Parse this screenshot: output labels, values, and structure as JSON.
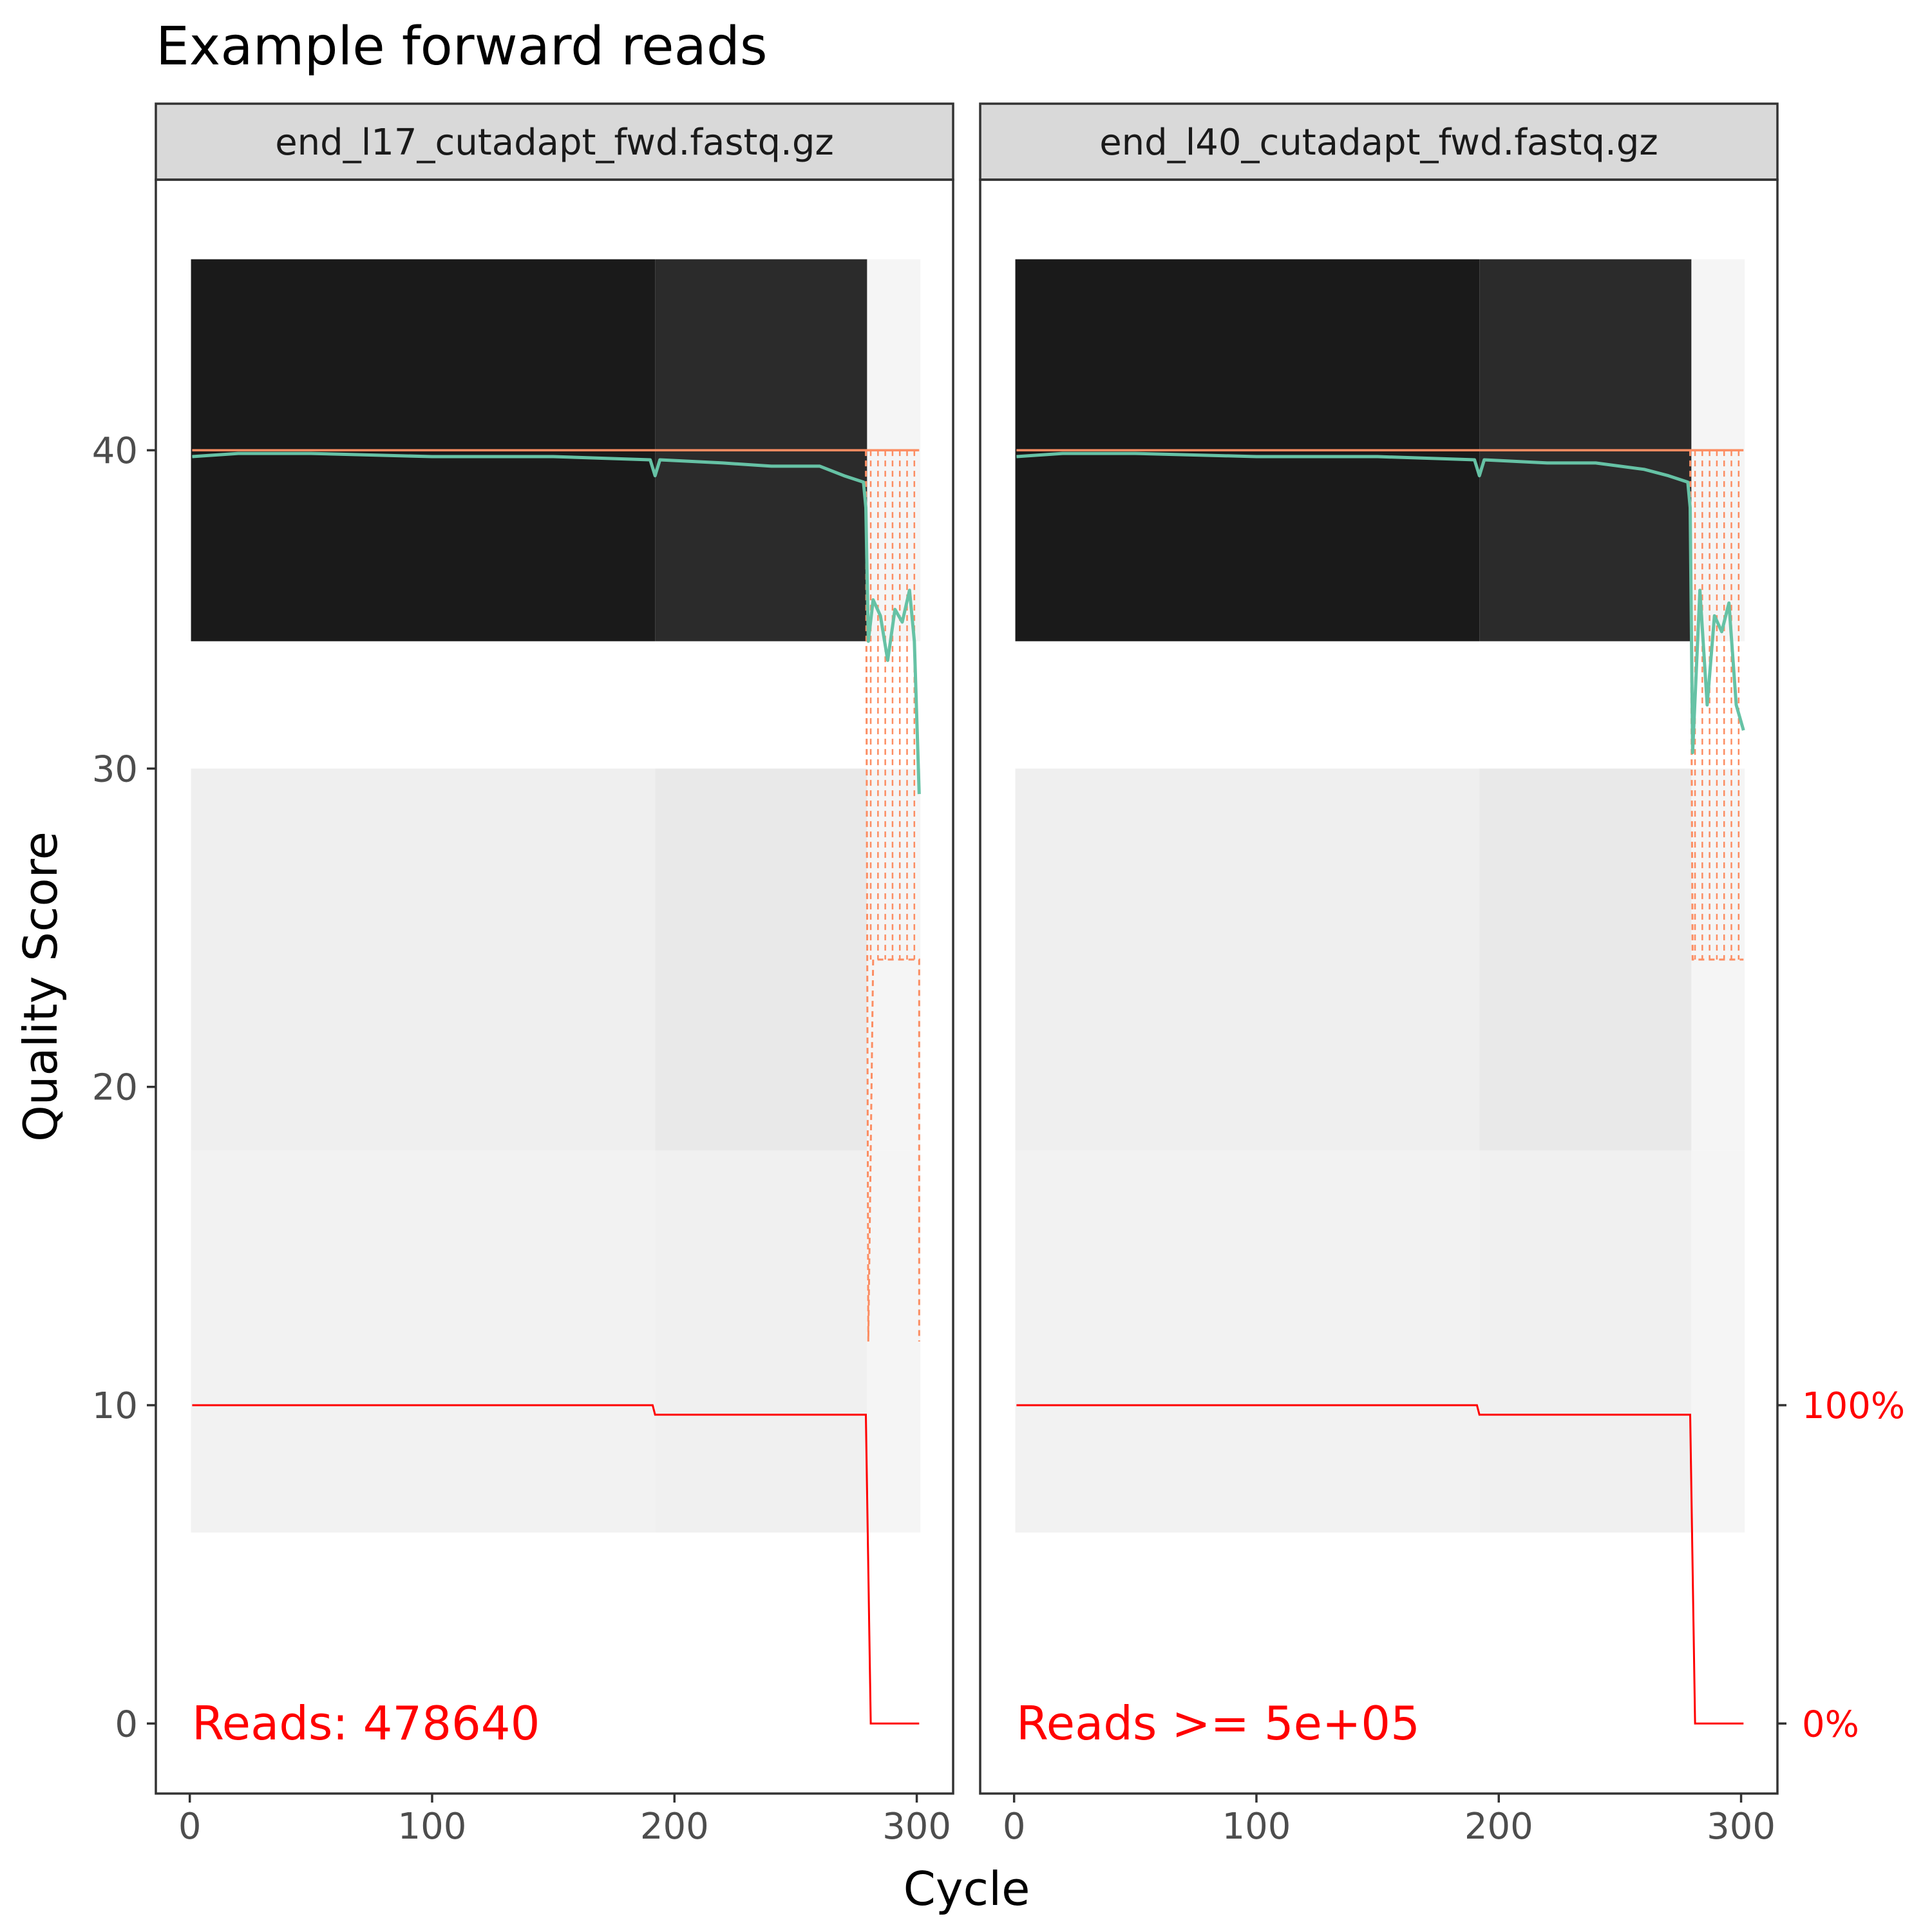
{
  "chart_data": {
    "type": "heatmap",
    "title": "Example forward reads",
    "xlabel": "Cycle",
    "ylabel": "Quality Score",
    "xlim": [
      -14,
      315
    ],
    "ylim": [
      -2.2,
      48.5
    ],
    "x_ticks": [
      "0",
      "100",
      "200",
      "300"
    ],
    "x_tick_values": [
      0,
      100,
      200,
      300
    ],
    "y_ticks": [
      "0",
      "10",
      "20",
      "30",
      "40"
    ],
    "y_tick_values": [
      0,
      10,
      20,
      30,
      40
    ],
    "right_axis_ticks": [
      "0%",
      "100%"
    ],
    "right_axis_values": [
      0,
      10
    ],
    "background_note": "Cycles 1-301; score bands with counts",
    "panels": [
      {
        "strip_label": "end_l17_cutadapt_fwd.fastq.gz",
        "reads_label": "Reads:  478640",
        "max_cycle": 301,
        "full_cycles": 279,
        "mean_quality": [
          [
            1,
            39.8
          ],
          [
            20,
            39.9
          ],
          [
            50,
            39.9
          ],
          [
            100,
            39.8
          ],
          [
            150,
            39.8
          ],
          [
            190,
            39.7
          ],
          [
            192,
            39.2
          ],
          [
            194,
            39.7
          ],
          [
            220,
            39.6
          ],
          [
            240,
            39.5
          ],
          [
            260,
            39.5
          ],
          [
            270,
            39.2
          ],
          [
            278,
            39.0
          ],
          [
            279,
            38.2
          ],
          [
            280,
            34.0
          ],
          [
            282,
            35.3
          ],
          [
            285,
            34.8
          ],
          [
            288,
            33.4
          ],
          [
            291,
            35.0
          ],
          [
            294,
            34.6
          ],
          [
            297,
            35.6
          ],
          [
            299,
            34.0
          ],
          [
            301,
            29.2
          ]
        ],
        "q25_dashed": [
          [
            279,
            40
          ],
          [
            280,
            12
          ],
          [
            282,
            24
          ],
          [
            301,
            24
          ],
          [
            301,
            12
          ]
        ],
        "q50_solid": [
          [
            1,
            40
          ],
          [
            301,
            40
          ]
        ],
        "cumulative_reads_fraction": [
          [
            1,
            1.0
          ],
          [
            191,
            1.0
          ],
          [
            192,
            0.97
          ],
          [
            279,
            0.97
          ],
          [
            281,
            0.0
          ],
          [
            301,
            0.0
          ]
        ]
      },
      {
        "strip_label": "end_l40_cutadapt_fwd.fastq.gz",
        "reads_label": "Reads >=  5e+05",
        "max_cycle": 301,
        "full_cycles": 279,
        "mean_quality": [
          [
            1,
            39.8
          ],
          [
            20,
            39.9
          ],
          [
            50,
            39.9
          ],
          [
            100,
            39.8
          ],
          [
            150,
            39.8
          ],
          [
            190,
            39.7
          ],
          [
            192,
            39.2
          ],
          [
            194,
            39.7
          ],
          [
            220,
            39.6
          ],
          [
            240,
            39.6
          ],
          [
            260,
            39.4
          ],
          [
            270,
            39.2
          ],
          [
            278,
            39.0
          ],
          [
            279,
            38.2
          ],
          [
            280,
            30.5
          ],
          [
            283,
            35.6
          ],
          [
            286,
            32.0
          ],
          [
            289,
            34.8
          ],
          [
            292,
            34.3
          ],
          [
            295,
            35.2
          ],
          [
            298,
            32.0
          ],
          [
            301,
            31.2
          ]
        ],
        "q25_dashed": [
          [
            279,
            40
          ],
          [
            280,
            24
          ],
          [
            301,
            24
          ]
        ],
        "q50_solid": [
          [
            1,
            40
          ],
          [
            301,
            40
          ]
        ],
        "cumulative_reads_fraction": [
          [
            1,
            1.0
          ],
          [
            191,
            1.0
          ],
          [
            192,
            0.97
          ],
          [
            279,
            0.97
          ],
          [
            281,
            0.0
          ],
          [
            301,
            0.0
          ]
        ]
      }
    ],
    "colors": {
      "mean_line": "#66c2a5",
      "quantile_line": "#fc8d62",
      "cumulative_line": "#ff0000",
      "reads_text": "#ff0000",
      "strip_fill": "#d9d9d9",
      "panel_border": "#333333"
    }
  }
}
